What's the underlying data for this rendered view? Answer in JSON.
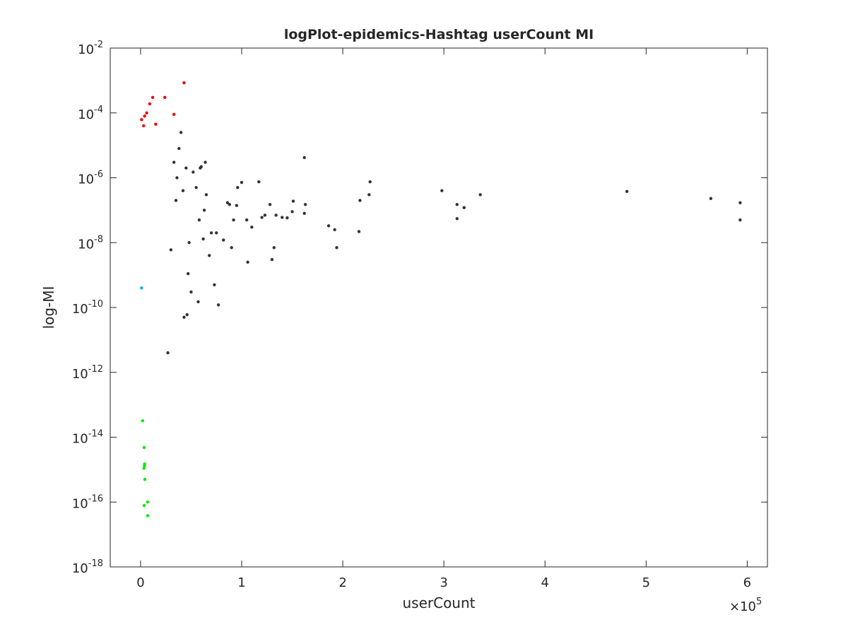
{
  "chart_data": {
    "type": "scatter",
    "title": "logPlot-epidemics-Hashtag userCount MI",
    "xlabel": "userCount",
    "ylabel": "log-MI",
    "xlim": [
      -30000,
      620000
    ],
    "ylim": [
      1e-18,
      0.01
    ],
    "yscale": "log",
    "x_exponent_label": "×10",
    "x_exponent_power": "5",
    "x_ticks": [
      0,
      100000,
      200000,
      300000,
      400000,
      500000,
      600000
    ],
    "x_tick_labels": [
      "0",
      "1",
      "2",
      "3",
      "4",
      "5",
      "6"
    ],
    "y_ticks": [
      1e-18,
      1e-16,
      1e-14,
      1e-12,
      1e-10,
      1e-08,
      1e-06,
      0.0001,
      0.01
    ],
    "y_tick_bases": [
      "10",
      "10",
      "10",
      "10",
      "10",
      "10",
      "10",
      "10",
      "10"
    ],
    "y_tick_exponents": [
      "-18",
      "-16",
      "-14",
      "-12",
      "-10",
      "-8",
      "-6",
      "-4",
      "-2"
    ],
    "grid": false,
    "legend": "none",
    "colors": {
      "main": "#333333",
      "top_red": "#ee0000",
      "low_green": "#00ee00",
      "highlight_blue": "#00aaff",
      "axis": "#262626"
    },
    "series": [
      {
        "color_key": "main",
        "x": [
          162000,
          227000,
          226000,
          298000,
          313000,
          320000,
          336000,
          481000,
          564000,
          593000,
          593000,
          313000,
          217000,
          216000,
          145000,
          163000,
          162000,
          151000,
          128000,
          186000,
          192000,
          194000,
          132000,
          130000,
          106000,
          117000,
          100000,
          96000,
          88000,
          86000,
          92000,
          110000,
          120000,
          105000,
          123000,
          134000,
          150000,
          140000,
          77000,
          73000,
          82000,
          90000,
          95000,
          60000,
          64000,
          59000,
          63000,
          70000,
          68000,
          57000,
          46000,
          47000,
          40000,
          38000,
          43000,
          75000,
          58000,
          65000,
          52000,
          55000,
          62000,
          45000,
          33000,
          48000,
          30000,
          50000,
          42000,
          36000,
          35000,
          27000
        ],
        "y": [
          4.2e-06,
          7.5e-07,
          3e-07,
          4e-07,
          1.5e-07,
          1.2e-07,
          3e-07,
          3.8e-07,
          2.3e-07,
          1.7e-07,
          5e-08,
          5.5e-08,
          2e-07,
          2.2e-08,
          5.8e-08,
          1.5e-07,
          8e-08,
          1.9e-07,
          1.5e-07,
          3.3e-08,
          2.5e-08,
          7e-09,
          7e-09,
          3e-09,
          2.5e-09,
          7.5e-07,
          7.2e-07,
          5e-07,
          1.5e-07,
          1.7e-07,
          5e-08,
          3e-08,
          6e-08,
          5e-08,
          7e-08,
          7e-08,
          9e-08,
          6e-08,
          1.2e-10,
          5e-10,
          1.2e-08,
          7e-09,
          1.4e-07,
          2.2e-06,
          3e-06,
          2e-06,
          1e-07,
          2e-08,
          4e-09,
          1.5e-10,
          6e-11,
          1.1e-09,
          2.5e-05,
          8e-06,
          5e-11,
          2e-08,
          5e-08,
          3e-07,
          1.5e-06,
          5e-07,
          1.3e-08,
          2e-06,
          3e-06,
          1e-08,
          6e-09,
          3e-10,
          4e-07,
          1e-06,
          2e-07,
          4e-12
        ]
      },
      {
        "color_key": "top_red",
        "x": [
          43000,
          12000,
          24000,
          9000,
          6000,
          33000,
          15000,
          4000,
          1000,
          3000
        ],
        "y": [
          0.00085,
          0.0003,
          0.0003,
          0.00019,
          0.0001,
          9e-05,
          4.5e-05,
          8e-05,
          6.2e-05,
          4e-05
        ]
      },
      {
        "color_key": "low_green",
        "x": [
          2000,
          3500,
          4000,
          3800,
          3300,
          4200,
          7000,
          3500,
          7000
        ],
        "y": [
          3.2e-14,
          4.8e-15,
          1.5e-15,
          1.3e-15,
          1.1e-15,
          5e-16,
          1e-16,
          7.8e-17,
          3.8e-17
        ]
      },
      {
        "color_key": "highlight_blue",
        "x": [
          1000
        ],
        "y": [
          4e-10
        ]
      }
    ]
  }
}
